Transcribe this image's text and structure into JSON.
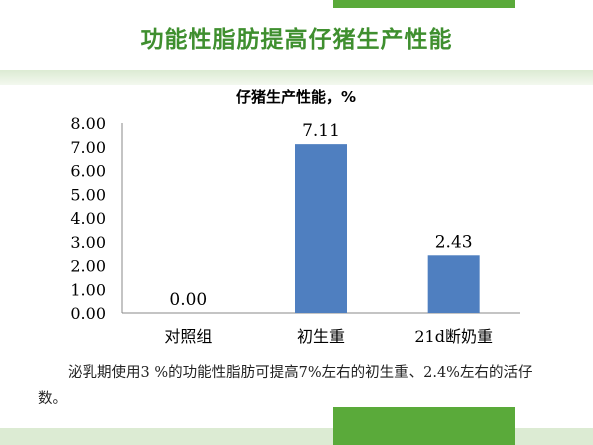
{
  "slide": {
    "title": "功能性脂肪提高仔猪生产性能",
    "caption": "泌乳期使用3 %的功能性脂肪可提高7%左右的初生重、2.4%左右的活仔数。"
  },
  "colors": {
    "title": "#3f8f2f",
    "accent_bar": "#5aaa3a",
    "band": "#dcebd3",
    "bar": "#4f7fc0"
  },
  "chart_data": {
    "type": "bar",
    "title": "仔猪生产性能，%",
    "categories": [
      "对照组",
      "初生重",
      "21d断奶重"
    ],
    "values": [
      0.0,
      7.11,
      2.43
    ],
    "data_labels": [
      "0.00",
      "7.11",
      "2.43"
    ],
    "ylim": [
      0,
      8
    ],
    "yticks": [
      "0.00",
      "1.00",
      "2.00",
      "3.00",
      "4.00",
      "5.00",
      "6.00",
      "7.00",
      "8.00"
    ],
    "xlabel": "",
    "ylabel": "",
    "grid": false,
    "legend": "none"
  }
}
